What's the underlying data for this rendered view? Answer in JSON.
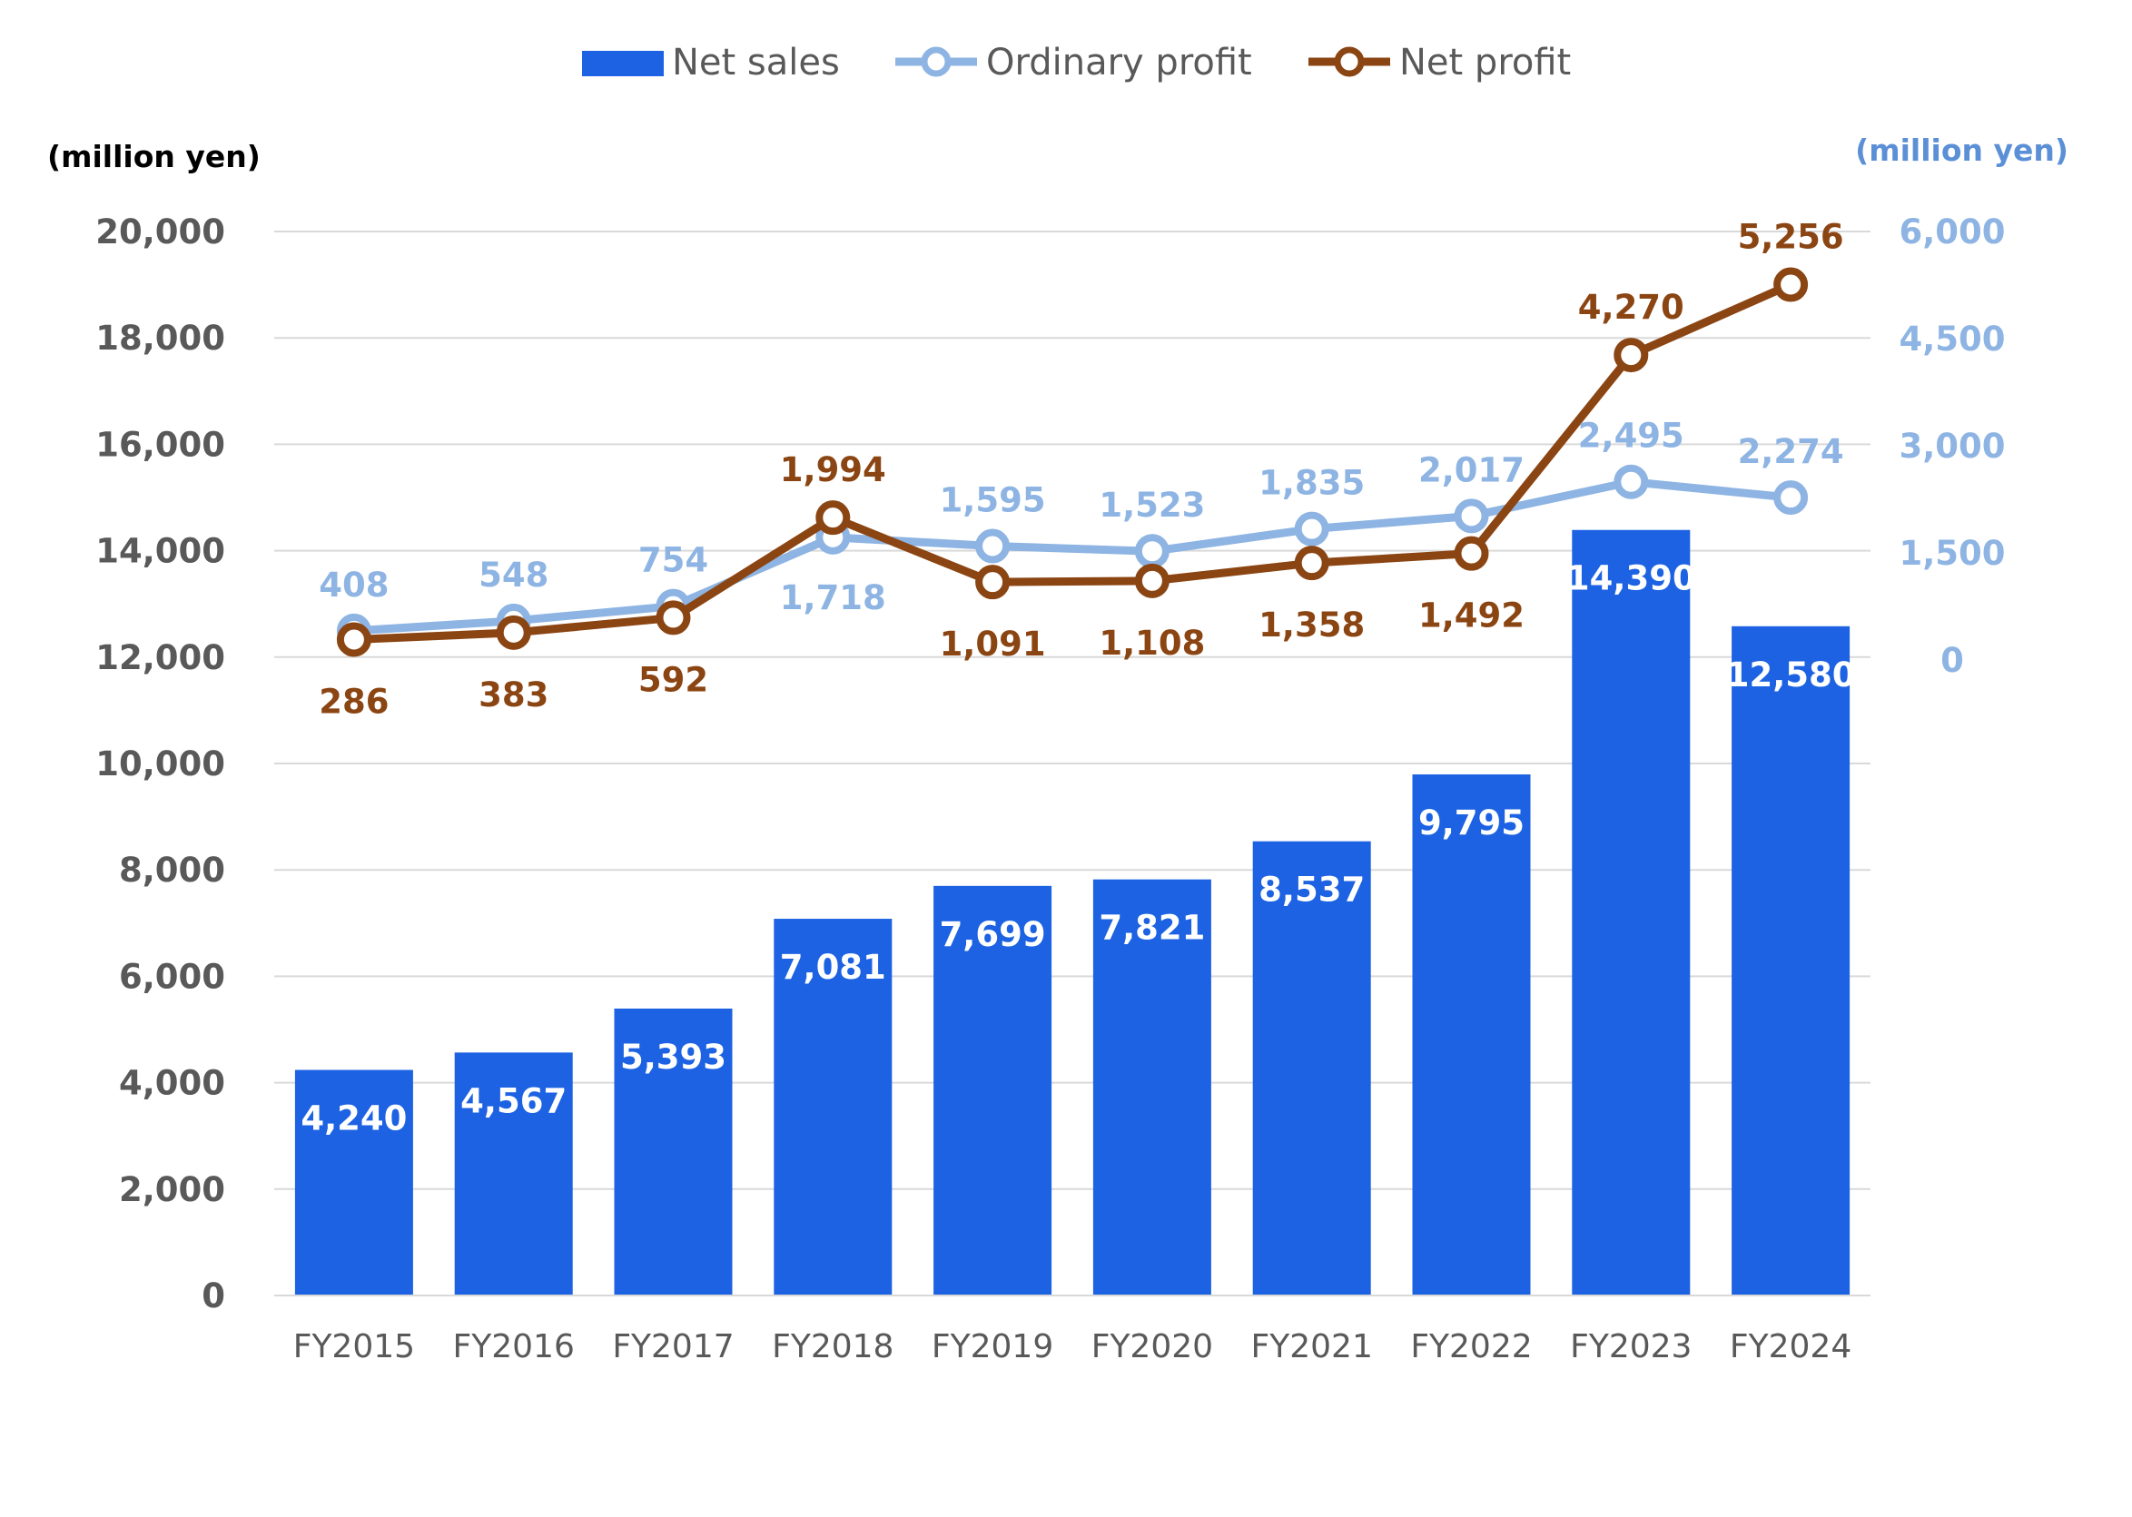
{
  "chart_data": {
    "type": "bar",
    "categories": [
      "FY2015",
      "FY2016",
      "FY2017",
      "FY2018",
      "FY2019",
      "FY2020",
      "FY2021",
      "FY2022",
      "FY2023",
      "FY2024"
    ],
    "series": [
      {
        "name": "Net sales",
        "type": "bar",
        "axis": "left",
        "color": "#1c62e2",
        "values": [
          4240,
          4567,
          5393,
          7081,
          7699,
          7821,
          8537,
          9795,
          14390,
          12580
        ],
        "labels": [
          "4,240",
          "4,567",
          "5,393",
          "7,081",
          "7,699",
          "7,821",
          "8,537",
          "9,795",
          "14,390",
          "12,580"
        ]
      },
      {
        "name": "Ordinary profit",
        "type": "line",
        "axis": "right",
        "color": "#8eb4e3",
        "values": [
          408,
          548,
          754,
          1718,
          1595,
          1523,
          1835,
          2017,
          2495,
          2274
        ],
        "labels": [
          "408",
          "548",
          "754",
          "1,718",
          "1,595",
          "1,523",
          "1,835",
          "2,017",
          "2,495",
          "2,274"
        ]
      },
      {
        "name": "Net profit",
        "type": "line",
        "axis": "right",
        "color": "#8b4513",
        "values": [
          286,
          383,
          592,
          1994,
          1091,
          1108,
          1358,
          1492,
          4270,
          5256
        ],
        "labels": [
          "286",
          "383",
          "592",
          "1,994",
          "1,091",
          "1,108",
          "1,358",
          "1,492",
          "4,270",
          "5,256"
        ]
      }
    ],
    "y_left": {
      "label": "(million yen)",
      "lim": [
        0,
        20000
      ],
      "ticks": [
        0,
        2000,
        4000,
        6000,
        8000,
        10000,
        12000,
        14000,
        16000,
        18000,
        20000
      ],
      "tick_labels": [
        "0",
        "2,000",
        "4,000",
        "6,000",
        "8,000",
        "10,000",
        "12,000",
        "14,000",
        "16,000",
        "18,000",
        "20,000"
      ]
    },
    "y_right": {
      "label": "(million yen)",
      "lim": [
        0,
        6000
      ],
      "ticks": [
        0,
        1500,
        3000,
        4500,
        6000
      ],
      "tick_labels": [
        "0",
        "1,500",
        "3,000",
        "4,500",
        "6,000"
      ]
    },
    "grid": true,
    "legend_position": "top-center"
  }
}
